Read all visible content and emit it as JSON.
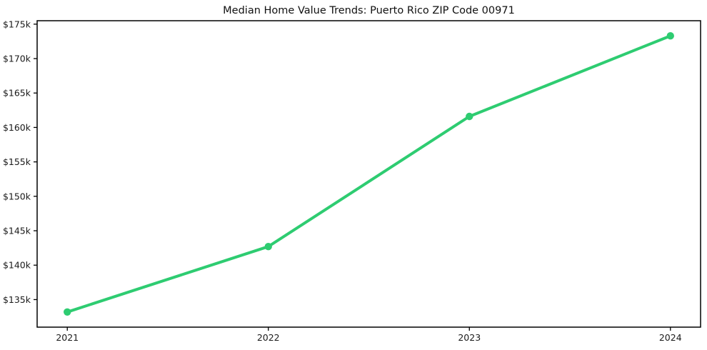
{
  "chart_data": {
    "type": "line",
    "title": "Median Home Value Trends: Puerto Rico ZIP Code 00971",
    "xlabel": "",
    "ylabel": "",
    "x": [
      2021,
      2022,
      2023,
      2024
    ],
    "values": [
      133200,
      142700,
      161600,
      173300
    ],
    "values_k": [
      133.2,
      142.7,
      161.6,
      173.3
    ],
    "series": [
      {
        "name": "Median Home Value",
        "values": [
          133200,
          142700,
          161600,
          173300
        ]
      }
    ],
    "line_color": "#2ecc71",
    "marker": "circle",
    "grid": false,
    "legend_position": "none",
    "xlim": [
      2020.85,
      2024.15
    ],
    "ylim_k": [
      131.0,
      175.5
    ],
    "x_ticks": [
      {
        "value": 2021,
        "label": "2021"
      },
      {
        "value": 2022,
        "label": "2022"
      },
      {
        "value": 2023,
        "label": "2023"
      },
      {
        "value": 2024,
        "label": "2024"
      }
    ],
    "y_ticks": [
      {
        "value_k": 135,
        "label": "$135k"
      },
      {
        "value_k": 140,
        "label": "$140k"
      },
      {
        "value_k": 145,
        "label": "$145k"
      },
      {
        "value_k": 150,
        "label": "$150k"
      },
      {
        "value_k": 155,
        "label": "$155k"
      },
      {
        "value_k": 160,
        "label": "$160k"
      },
      {
        "value_k": 165,
        "label": "$165k"
      },
      {
        "value_k": 170,
        "label": "$170k"
      },
      {
        "value_k": 175,
        "label": "$175k"
      }
    ],
    "colors": {
      "line": "#2ecc71",
      "marker": "#2ecc71",
      "spine": "#000000",
      "tick_text": "#1a1a1a",
      "background": "#ffffff"
    }
  }
}
